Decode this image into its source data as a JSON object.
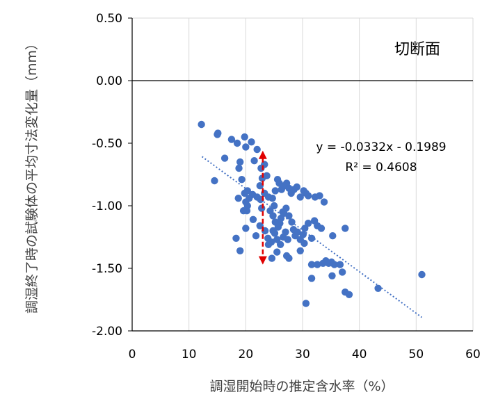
{
  "chart_data": {
    "type": "scatter",
    "title": "",
    "panel_label": "切断面",
    "xlabel": "調湿開始時の推定含水率（%）",
    "ylabel": "調湿終了時の試験体の平均寸法変化量（mm）",
    "xlim": [
      0,
      60
    ],
    "ylim": [
      -2.0,
      0.5
    ],
    "x_ticks": [
      "0",
      "10",
      "20",
      "30",
      "40",
      "50",
      "60"
    ],
    "y_ticks": [
      "-2.00",
      "-1.50",
      "-1.00",
      "-0.50",
      "0.00",
      "0.50"
    ],
    "x_tick_values": [
      0,
      10,
      20,
      30,
      40,
      50,
      60
    ],
    "y_tick_values": [
      -2.0,
      -1.5,
      -1.0,
      -0.5,
      0.0,
      0.5
    ],
    "grid": "vertical",
    "legend": "none",
    "marker_color": "#4472c4",
    "trendline": {
      "type": "linear",
      "slope": -0.0332,
      "intercept": -0.1989,
      "x_range": [
        12.3,
        51.0
      ],
      "color": "#4472c4",
      "style": "dotted"
    },
    "equation_text": "y = -0.0332x - 0.1989",
    "r2_text": "R² = 0.4608",
    "range_arrow": {
      "x": 23.0,
      "y_from": -0.56,
      "y_to": -1.47,
      "color": "#e00000"
    },
    "series": [
      {
        "points": [
          [
            12.2,
            -0.35
          ],
          [
            15.0,
            -0.43
          ],
          [
            15.1,
            -0.42
          ],
          [
            14.5,
            -0.8
          ],
          [
            16.3,
            -0.62
          ],
          [
            17.5,
            -0.47
          ],
          [
            18.5,
            -0.5
          ],
          [
            18.8,
            -0.7
          ],
          [
            19.0,
            -0.65
          ],
          [
            19.3,
            -0.79
          ],
          [
            19.8,
            -0.45
          ],
          [
            20.0,
            -0.53
          ],
          [
            21.0,
            -0.49
          ],
          [
            20.3,
            -0.88
          ],
          [
            21.5,
            -0.64
          ],
          [
            22.0,
            -0.55
          ],
          [
            22.5,
            -0.84
          ],
          [
            22.7,
            -0.7
          ],
          [
            22.9,
            -0.78
          ],
          [
            23.3,
            -0.67
          ],
          [
            23.7,
            -0.76
          ],
          [
            18.7,
            -0.94
          ],
          [
            19.8,
            -0.9
          ],
          [
            20.0,
            -0.97
          ],
          [
            20.3,
            -1.0
          ],
          [
            19.6,
            -1.04
          ],
          [
            20.2,
            -1.04
          ],
          [
            20.6,
            -0.94
          ],
          [
            21.2,
            -0.91
          ],
          [
            22.0,
            -0.93
          ],
          [
            22.6,
            -0.95
          ],
          [
            22.8,
            -1.02
          ],
          [
            23.3,
            -0.9
          ],
          [
            24.0,
            -0.93
          ],
          [
            24.7,
            -0.94
          ],
          [
            25.2,
            -0.88
          ],
          [
            25.6,
            -0.79
          ],
          [
            25.9,
            -0.82
          ],
          [
            26.3,
            -0.87
          ],
          [
            26.8,
            -0.84
          ],
          [
            27.2,
            -0.82
          ],
          [
            27.6,
            -0.86
          ],
          [
            28.0,
            -0.9
          ],
          [
            28.5,
            -0.87
          ],
          [
            29.0,
            -0.85
          ],
          [
            29.6,
            -0.93
          ],
          [
            30.2,
            -0.88
          ],
          [
            30.6,
            -0.9
          ],
          [
            31.0,
            -0.92
          ],
          [
            32.2,
            -0.93
          ],
          [
            33.0,
            -0.92
          ],
          [
            33.8,
            -0.97
          ],
          [
            24.3,
            -1.04
          ],
          [
            24.8,
            -1.08
          ],
          [
            25.2,
            -1.13
          ],
          [
            25.7,
            -1.17
          ],
          [
            26.2,
            -1.1
          ],
          [
            26.7,
            -1.06
          ],
          [
            27.1,
            -1.02
          ],
          [
            27.6,
            -1.08
          ],
          [
            28.1,
            -1.13
          ],
          [
            28.4,
            -1.19
          ],
          [
            28.7,
            -1.24
          ],
          [
            29.1,
            -1.21
          ],
          [
            29.6,
            -1.27
          ],
          [
            30.1,
            -1.23
          ],
          [
            30.4,
            -1.18
          ],
          [
            20.0,
            -1.18
          ],
          [
            18.3,
            -1.26
          ],
          [
            19.0,
            -1.36
          ],
          [
            21.3,
            -1.11
          ],
          [
            21.8,
            -1.24
          ],
          [
            22.5,
            -1.16
          ],
          [
            23.4,
            -1.2
          ],
          [
            23.9,
            -1.26
          ],
          [
            24.5,
            -1.29
          ],
          [
            25.1,
            -1.22
          ],
          [
            25.5,
            -1.27
          ],
          [
            26.1,
            -1.31
          ],
          [
            26.6,
            -1.25
          ],
          [
            27.0,
            -1.21
          ],
          [
            27.4,
            -1.27
          ],
          [
            31.0,
            -1.14
          ],
          [
            31.6,
            -1.26
          ],
          [
            32.1,
            -1.12
          ],
          [
            32.6,
            -1.16
          ],
          [
            33.3,
            -1.18
          ],
          [
            30.3,
            -1.3
          ],
          [
            29.6,
            -1.36
          ],
          [
            27.2,
            -1.4
          ],
          [
            27.6,
            -1.42
          ],
          [
            25.5,
            -1.37
          ],
          [
            24.6,
            -1.42
          ],
          [
            24.0,
            -1.31
          ],
          [
            24.8,
            -1.2
          ],
          [
            26.0,
            -1.14
          ],
          [
            25.0,
            -1.0
          ],
          [
            26.5,
            -1.05
          ],
          [
            35.3,
            -1.24
          ],
          [
            37.5,
            -1.18
          ],
          [
            31.6,
            -1.47
          ],
          [
            32.6,
            -1.47
          ],
          [
            33.6,
            -1.46
          ],
          [
            34.1,
            -1.44
          ],
          [
            34.6,
            -1.46
          ],
          [
            35.1,
            -1.45
          ],
          [
            35.6,
            -1.47
          ],
          [
            36.6,
            -1.47
          ],
          [
            37.0,
            -1.53
          ],
          [
            35.2,
            -1.56
          ],
          [
            37.5,
            -1.69
          ],
          [
            38.2,
            -1.71
          ],
          [
            31.6,
            -1.58
          ],
          [
            30.6,
            -1.78
          ],
          [
            43.3,
            -1.66
          ],
          [
            51.0,
            -1.55
          ]
        ]
      }
    ]
  }
}
